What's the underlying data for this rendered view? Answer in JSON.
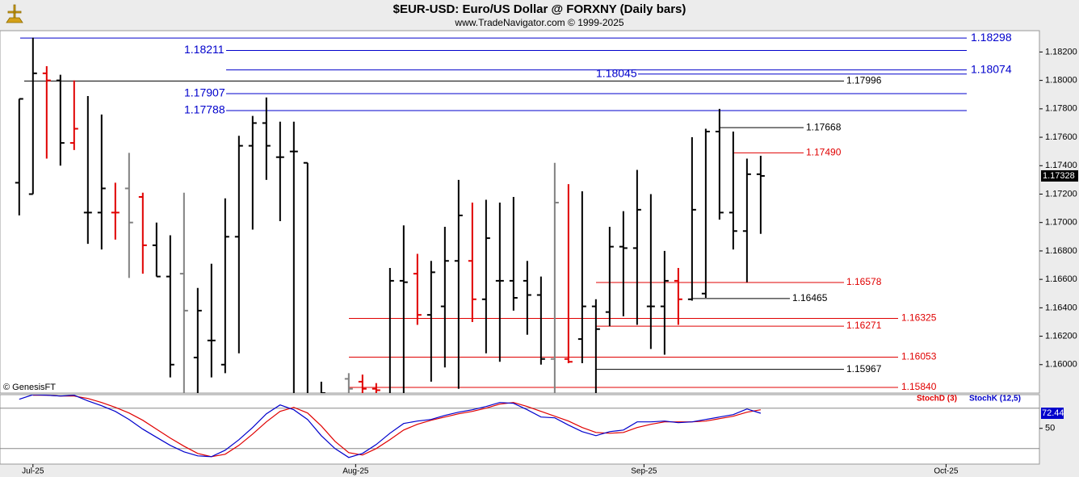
{
  "chart_data": {
    "type": "ohlc",
    "title": "$EUR-USD:  Euro/US Dollar @ FORXNY  (Daily bars)",
    "subtitle": "www.TradeNavigator.com © 1999-2025",
    "credit": "© GenesisFT",
    "xlim": [
      -1.4,
      74.3
    ],
    "xticks": [
      {
        "value": 1,
        "label": "Jul-25"
      },
      {
        "value": 24.5,
        "label": "Aug-25"
      },
      {
        "value": 45.5,
        "label": "Sep-25"
      },
      {
        "value": 67.5,
        "label": "Oct-25"
      }
    ],
    "ylim": [
      1.158,
      1.1835
    ],
    "yticks": [
      {
        "value": 1.182,
        "label": "1.18200"
      },
      {
        "value": 1.18,
        "label": "1.18000"
      },
      {
        "value": 1.178,
        "label": "1.17800"
      },
      {
        "value": 1.176,
        "label": "1.17600"
      },
      {
        "value": 1.174,
        "label": "1.17400"
      },
      {
        "value": 1.172,
        "label": "1.17200"
      },
      {
        "value": 1.17,
        "label": "1.17000"
      },
      {
        "value": 1.168,
        "label": "1.16800"
      },
      {
        "value": 1.166,
        "label": "1.16600"
      },
      {
        "value": 1.164,
        "label": "1.16400"
      },
      {
        "value": 1.162,
        "label": "1.16200"
      },
      {
        "value": 1.16,
        "label": "1.16000"
      }
    ],
    "open": [
      1.1728,
      1.172,
      1.1805,
      1.18,
      1.1756,
      1.1707,
      1.1707,
      1.1707,
      1.1724,
      1.1718,
      1.1684,
      1.1662,
      1.1664,
      1.1605,
      1.1617,
      1.16,
      1.169,
      1.1754,
      1.177,
      1.1746,
      1.175,
      1.1742,
      1.1575,
      1.1572,
      1.159,
      1.1588,
      1.1583,
      1.1575,
      1.1659,
      1.1664,
      1.1635,
      1.1641,
      1.1673,
      1.1673,
      1.1646,
      1.1659,
      1.1659,
      1.1659,
      1.1649,
      1.1604,
      1.1604,
      1.1618,
      1.1641,
      1.1637,
      1.1683,
      1.1682,
      1.1641,
      1.1641,
      1.1659,
      1.1646,
      1.165,
      1.1764,
      1.1707,
      1.1694,
      1.1734
    ],
    "high": [
      1.1787,
      1.183,
      1.181,
      1.1804,
      1.18,
      1.1789,
      1.1776,
      1.1728,
      1.1749,
      1.1721,
      1.17,
      1.1691,
      1.1721,
      1.1654,
      1.1671,
      1.1717,
      1.1761,
      1.1775,
      1.1788,
      1.1771,
      1.1771,
      1.1742,
      1.1588,
      1.1578,
      1.1594,
      1.1593,
      1.1587,
      1.1668,
      1.1698,
      1.1678,
      1.1673,
      1.1697,
      1.173,
      1.1714,
      1.1716,
      1.1714,
      1.1718,
      1.1673,
      1.1662,
      1.1742,
      1.1727,
      1.1722,
      1.1646,
      1.1697,
      1.1708,
      1.1737,
      1.172,
      1.168,
      1.1668,
      1.176,
      1.1766,
      1.178,
      1.1764,
      1.1745,
      1.1747
    ],
    "low": [
      1.1705,
      1.172,
      1.1745,
      1.174,
      1.1751,
      1.1685,
      1.1681,
      1.1688,
      1.1661,
      1.1664,
      1.1662,
      1.1591,
      1.157,
      1.157,
      1.1591,
      1.1594,
      1.1608,
      1.1695,
      1.173,
      1.1701,
      1.156,
      1.156,
      1.157,
      1.1565,
      1.1575,
      1.1575,
      1.1575,
      1.157,
      1.1575,
      1.1628,
      1.1588,
      1.1598,
      1.1583,
      1.163,
      1.1608,
      1.1602,
      1.1638,
      1.1621,
      1.16,
      1.158,
      1.1601,
      1.1601,
      1.158,
      1.1627,
      1.1634,
      1.1628,
      1.1611,
      1.1607,
      1.1628,
      1.1645,
      1.1647,
      1.1702,
      1.1681,
      1.1658,
      1.1692
    ],
    "close": [
      1.1787,
      1.1805,
      1.18,
      1.1756,
      1.1766,
      1.1707,
      1.1724,
      1.1707,
      1.17,
      1.1684,
      1.1662,
      1.16,
      1.1638,
      1.1638,
      1.1617,
      1.169,
      1.1754,
      1.177,
      1.1754,
      1.1746,
      1.175,
      1.157,
      1.158,
      1.1574,
      1.1583,
      1.1583,
      1.1582,
      1.1659,
      1.1658,
      1.1635,
      1.1665,
      1.1673,
      1.1705,
      1.1646,
      1.1689,
      1.1659,
      1.1647,
      1.1649,
      1.1604,
      1.1714,
      1.1602,
      1.1641,
      1.1625,
      1.1683,
      1.1682,
      1.1709,
      1.1641,
      1.1659,
      1.1646,
      1.1709,
      1.1764,
      1.1707,
      1.1694,
      1.1734,
      1.17328
    ],
    "bar_colors": [
      "#000000",
      "#000000",
      "#e00000",
      "#000000",
      "#e00000",
      "#000000",
      "#000000",
      "#e00000",
      "#808080",
      "#e00000",
      "#000000",
      "#000000",
      "#808080",
      "#000000",
      "#000000",
      "#000000",
      "#000000",
      "#000000",
      "#000000",
      "#000000",
      "#000000",
      "#000000",
      "#000000",
      "#000000",
      "#808080",
      "#e00000",
      "#e00000",
      "#000000",
      "#000000",
      "#e00000",
      "#000000",
      "#000000",
      "#000000",
      "#e00000",
      "#000000",
      "#000000",
      "#000000",
      "#000000",
      "#000000",
      "#808080",
      "#e00000",
      "#000000",
      "#000000",
      "#000000",
      "#000000",
      "#000000",
      "#000000",
      "#000000",
      "#e00000",
      "#000000",
      "#000000",
      "#000000",
      "#000000",
      "#000000",
      "#000000"
    ],
    "levels": [
      {
        "value": 1.18298,
        "color": "#0000cc"
      },
      {
        "value": 1.18211,
        "color": "#0000cc"
      },
      {
        "value": 1.18074,
        "color": "#0000cc"
      },
      {
        "value": 1.18045,
        "color": "#0000cc"
      },
      {
        "value": 1.17996,
        "color": "#000000"
      },
      {
        "value": 1.17907,
        "color": "#0000cc"
      },
      {
        "value": 1.17788,
        "color": "#0000cc"
      },
      {
        "value": 1.17668,
        "color": "#000000"
      },
      {
        "value": 1.1749,
        "label": "1.17490",
        "color": "#e00000"
      },
      {
        "value": 1.16578,
        "color": "#e00000"
      },
      {
        "value": 1.16465,
        "color": "#000000"
      },
      {
        "value": 1.16325,
        "color": "#e00000"
      },
      {
        "value": 1.16271,
        "color": "#e00000"
      },
      {
        "value": 1.16053,
        "color": "#e00000"
      },
      {
        "value": 1.15967,
        "color": "#000000"
      },
      {
        "value": 1.1584,
        "label": "1.15840",
        "color": "#e00000"
      }
    ],
    "stoch": {
      "ylim": [
        -3,
        100
      ],
      "yticks": [
        50
      ],
      "guides": [
        20,
        80
      ],
      "series": [
        {
          "name": "StochD (3)",
          "color": "#e00000",
          "values": [
            null,
            99.2,
            99.2,
            98,
            98,
            94.4,
            88.4,
            81.2,
            72.8,
            62,
            48.8,
            35.6,
            23.6,
            12.8,
            8,
            11.6,
            24.8,
            41.6,
            59.6,
            75.2,
            81.2,
            72.8,
            53.6,
            30.8,
            14,
            10.4,
            20,
            33.2,
            47.6,
            56,
            62,
            66.8,
            71.6,
            75.2,
            80,
            86,
            88.4,
            82.4,
            75.2,
            68,
            60.8,
            51.2,
            44,
            42.8,
            44,
            51.2,
            56,
            59.6,
            59.6,
            59.6,
            60.8,
            64.4,
            68,
            74,
            77.6
          ]
        },
        {
          "name": "StochK (12,5)",
          "color": "#0000cc",
          "values": [
            93.2,
            100,
            99.2,
            98,
            99.2,
            90.8,
            83.6,
            75.2,
            63.2,
            48.8,
            36.8,
            24.8,
            15.2,
            9.2,
            8,
            17.6,
            33.2,
            51.2,
            71.6,
            84.8,
            77.6,
            63.2,
            39.2,
            20,
            6.8,
            12.8,
            26,
            42.8,
            57.2,
            60.8,
            63.2,
            69.2,
            74,
            77.6,
            82.4,
            88.4,
            87.2,
            77.6,
            66.8,
            65.6,
            54.8,
            45.2,
            39.2,
            45.2,
            47.6,
            59.6,
            59.6,
            60.8,
            58.4,
            59.6,
            63.2,
            66.8,
            70.4,
            78.8,
            72.44
          ]
        }
      ]
    }
  }
}
